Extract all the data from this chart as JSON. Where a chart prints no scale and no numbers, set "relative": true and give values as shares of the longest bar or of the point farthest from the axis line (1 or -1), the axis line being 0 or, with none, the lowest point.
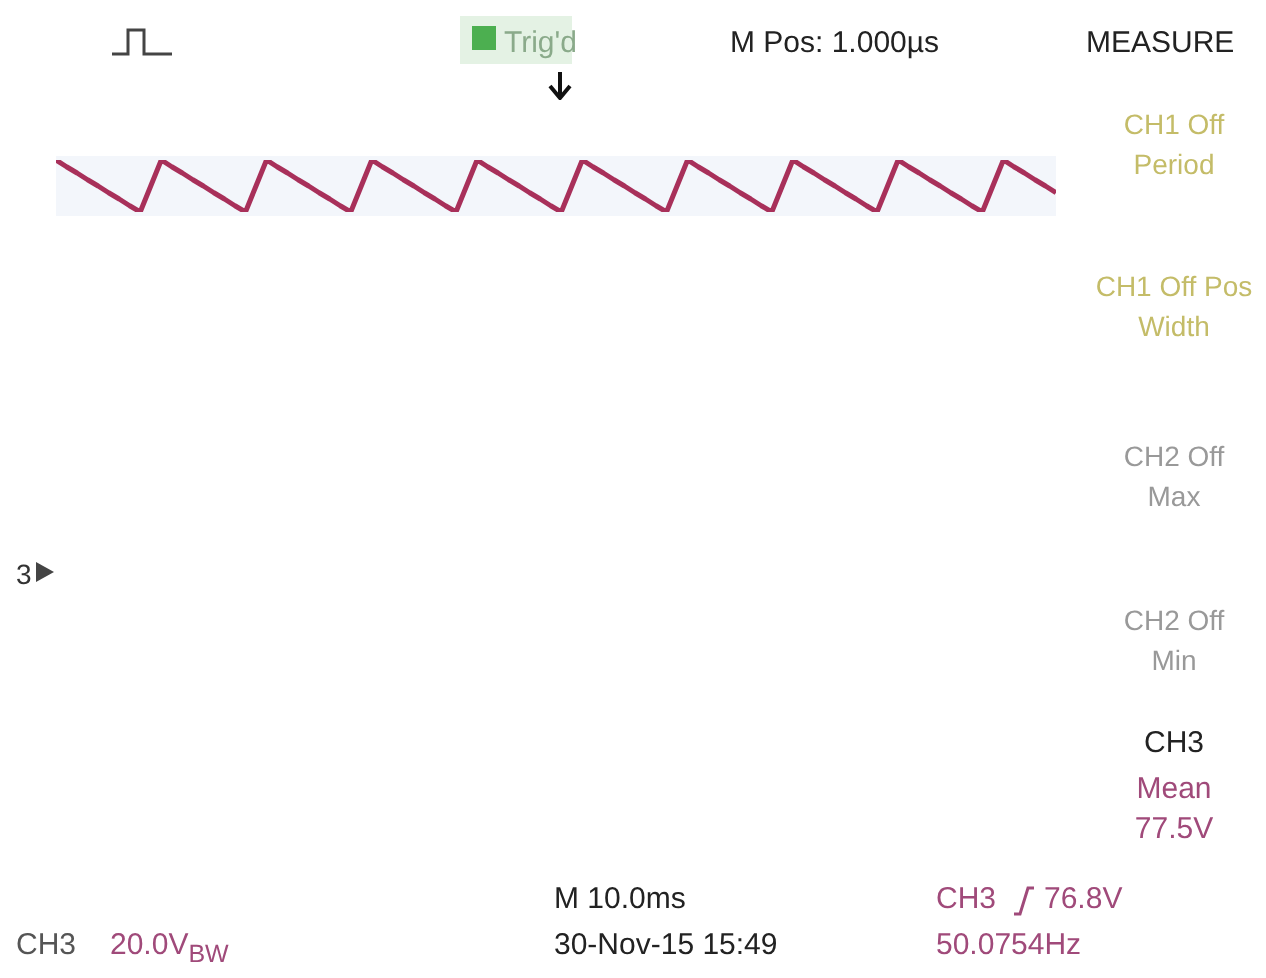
{
  "chart_data": {
    "type": "line",
    "relative": true,
    "categories": [
      null,
      null,
      null,
      null,
      null,
      null,
      null,
      null,
      null,
      null,
      null,
      null,
      null,
      null,
      null,
      null,
      null,
      null,
      null,
      null,
      null,
      null,
      null,
      null,
      null,
      null,
      null,
      null,
      null,
      null,
      null,
      null,
      null,
      null,
      null,
      null,
      null,
      null,
      null,
      null,
      null,
      null,
      null,
      null,
      null,
      null,
      null,
      null,
      null,
      null,
      null,
      null,
      null,
      null,
      null,
      null,
      null,
      null,
      null,
      null,
      null,
      null,
      null,
      null,
      null,
      null,
      null,
      null,
      null,
      null,
      null,
      null,
      null,
      null,
      null,
      null,
      null,
      null,
      null,
      null,
      null,
      null,
      null,
      null,
      null,
      null,
      null,
      null,
      null,
      null,
      null,
      null,
      null,
      null,
      null,
      null
    ],
    "series": [
      {
        "color": "#a8305a",
        "values": [
          1,
          0.87,
          0.75,
          0.62,
          0.5,
          0.37,
          0.25,
          0.12,
          0,
          0.5,
          1,
          0.87,
          0.75,
          0.62,
          0.5,
          0.37,
          0.25,
          0.12,
          0,
          0.5,
          1,
          0.87,
          0.75,
          0.62,
          0.5,
          0.37,
          0.25,
          0.12,
          0,
          0.5,
          1,
          0.87,
          0.75,
          0.62,
          0.5,
          0.37,
          0.25,
          0.12,
          0,
          0.5,
          1,
          0.87,
          0.75,
          0.62,
          0.5,
          0.37,
          0.25,
          0.12,
          0,
          0.5,
          1,
          0.87,
          0.75,
          0.62,
          0.5,
          0.37,
          0.25,
          0.12,
          0,
          0.5,
          1,
          0.87,
          0.75,
          0.62,
          0.5,
          0.37,
          0.25,
          0.12,
          0,
          0.5,
          1,
          0.87,
          0.75,
          0.62,
          0.5,
          0.37,
          0.25,
          0.12,
          0,
          0.5,
          1,
          0.87,
          0.75,
          0.62,
          0.5,
          0.37,
          0.25,
          0.12,
          0,
          0.5,
          1,
          0.87,
          0.75,
          0.62,
          0.5,
          0.37
        ]
      }
    ],
    "annotations": [
      "M Pos: 1.000µs",
      "MEASURE",
      "Trig'd",
      "CH1 Off Period",
      "CH1 Off Pos Width",
      "CH2 Off Max",
      "CH2 Off Min",
      "CH3",
      "Mean 77.5V",
      "3",
      "M 10.0ms",
      "30-Nov-15 15:49",
      "CH3",
      "76.8V",
      "50.0754Hz",
      "CH3",
      "20.0V$_{BW}$"
    ]
  }
}
